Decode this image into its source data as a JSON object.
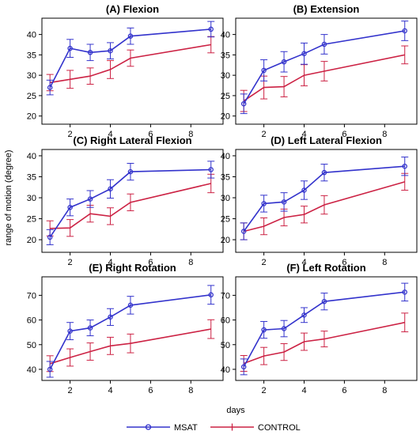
{
  "figure": {
    "ylabel": "range of motion (degree)",
    "xlabel": "days",
    "legend": [
      {
        "name": "MSAT",
        "color": "#3333cc",
        "marker": "circle"
      },
      {
        "name": "CONTROL",
        "color": "#cc2244",
        "marker": "plus"
      }
    ]
  },
  "chart_data": [
    {
      "type": "line",
      "title": "(A) Flexion",
      "x": [
        1,
        2,
        3,
        4,
        5,
        9
      ],
      "xticks": [
        "2",
        "4",
        "6",
        "8"
      ],
      "ylim": [
        18,
        44
      ],
      "yticks": [
        "20",
        "25",
        "30",
        "35",
        "40"
      ],
      "series": [
        {
          "name": "MSAT",
          "values": [
            27.0,
            36.6,
            35.6,
            36.0,
            39.6,
            41.3
          ],
          "err": [
            1.8,
            2.2,
            2.0,
            2.0,
            2.0,
            1.9
          ]
        },
        {
          "name": "CONTROL",
          "values": [
            28.2,
            29.0,
            29.8,
            31.4,
            34.2,
            37.5
          ],
          "err": [
            2.0,
            2.2,
            2.0,
            2.2,
            2.0,
            2.0
          ]
        }
      ]
    },
    {
      "type": "line",
      "title": "(B) Extension",
      "x": [
        1,
        2,
        3,
        4,
        5,
        9
      ],
      "xticks": [
        "2",
        "4",
        "6",
        "8"
      ],
      "ylim": [
        18,
        44
      ],
      "yticks": [
        "20",
        "25",
        "30",
        "35",
        "40"
      ],
      "series": [
        {
          "name": "MSAT",
          "values": [
            23.0,
            31.2,
            33.3,
            35.3,
            37.6,
            40.9
          ],
          "err": [
            2.4,
            2.6,
            2.5,
            2.6,
            2.4,
            2.4
          ]
        },
        {
          "name": "CONTROL",
          "values": [
            23.7,
            27.0,
            27.2,
            30.0,
            31.0,
            35.0
          ],
          "err": [
            2.6,
            2.8,
            2.5,
            2.6,
            2.4,
            2.2
          ]
        }
      ]
    },
    {
      "type": "line",
      "title": "(C) Right Lateral Flexion",
      "x": [
        1,
        2,
        3,
        4,
        5,
        9
      ],
      "xticks": [
        "2",
        "4",
        "6",
        "8"
      ],
      "ylim": [
        17,
        41.5
      ],
      "yticks": [
        "20",
        "25",
        "30",
        "35",
        "40"
      ],
      "series": [
        {
          "name": "MSAT",
          "values": [
            20.6,
            27.7,
            29.7,
            32.1,
            36.2,
            36.7
          ],
          "err": [
            1.8,
            2.0,
            2.0,
            2.2,
            2.0,
            2.0
          ]
        },
        {
          "name": "CONTROL",
          "values": [
            22.7,
            22.8,
            26.2,
            25.6,
            28.9,
            33.4
          ],
          "err": [
            1.8,
            2.0,
            2.0,
            2.0,
            2.0,
            2.2
          ]
        }
      ]
    },
    {
      "type": "line",
      "title": "(D) Left Lateral Flexion",
      "x": [
        1,
        2,
        3,
        4,
        5,
        9
      ],
      "xticks": [
        "2",
        "4",
        "6",
        "8"
      ],
      "ylim": [
        17,
        41.5
      ],
      "yticks": [
        "20",
        "25",
        "30",
        "35",
        "40"
      ],
      "series": [
        {
          "name": "MSAT",
          "values": [
            22.0,
            28.6,
            29.0,
            31.8,
            36.0,
            37.5
          ],
          "err": [
            2.0,
            2.0,
            2.2,
            2.2,
            2.0,
            2.2
          ]
        },
        {
          "name": "CONTROL",
          "values": [
            22.0,
            23.2,
            25.3,
            26.0,
            28.3,
            33.8
          ],
          "err": [
            2.0,
            2.0,
            2.0,
            2.0,
            2.2,
            2.0
          ]
        }
      ]
    },
    {
      "type": "line",
      "title": "(E) Right Rotation",
      "x": [
        1,
        2,
        3,
        4,
        5,
        9
      ],
      "xticks": [
        "2",
        "4",
        "6",
        "8"
      ],
      "ylim": [
        35.5,
        77.5
      ],
      "yticks": [
        "40",
        "50",
        "60",
        "70"
      ],
      "series": [
        {
          "name": "MSAT",
          "values": [
            40.0,
            55.5,
            56.8,
            61.2,
            66.0,
            70.2
          ],
          "err": [
            3.2,
            3.5,
            3.2,
            3.4,
            3.6,
            3.8
          ]
        },
        {
          "name": "CONTROL",
          "values": [
            42.3,
            44.8,
            47.2,
            49.5,
            50.5,
            56.3
          ],
          "err": [
            3.2,
            3.5,
            3.5,
            3.5,
            3.8,
            3.8
          ]
        }
      ]
    },
    {
      "type": "line",
      "title": "(F) Left Rotation",
      "x": [
        1,
        2,
        3,
        4,
        5,
        9
      ],
      "xticks": [
        "2",
        "4",
        "6",
        "8"
      ],
      "ylim": [
        35.5,
        77.5
      ],
      "yticks": [
        "40",
        "50",
        "60",
        "70"
      ],
      "series": [
        {
          "name": "MSAT",
          "values": [
            41.0,
            56.0,
            56.5,
            62.0,
            67.5,
            71.3
          ],
          "err": [
            3.2,
            3.4,
            3.3,
            3.0,
            3.4,
            3.6
          ]
        },
        {
          "name": "CONTROL",
          "values": [
            42.4,
            45.4,
            47.0,
            51.2,
            52.3,
            59.0
          ],
          "err": [
            3.2,
            3.5,
            3.4,
            3.5,
            3.2,
            3.8
          ]
        }
      ]
    }
  ]
}
